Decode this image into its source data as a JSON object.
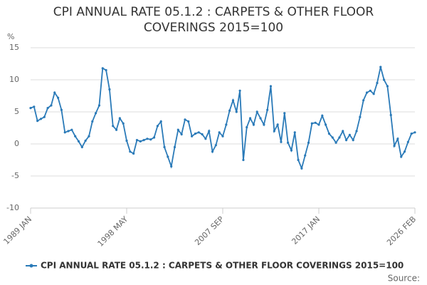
{
  "chart_data": {
    "type": "line",
    "title": "CPI ANNUAL RATE 05.1.2 : CARPETS & OTHER FLOOR COVERINGS 2015=100",
    "y_label": "%",
    "source": "Source:",
    "categories": [
      "1989 JAN",
      null,
      null,
      null,
      null,
      null,
      null,
      null,
      null,
      null,
      null,
      null,
      null,
      null,
      null,
      null,
      null,
      null,
      null,
      null,
      null,
      null,
      null,
      null,
      null,
      null,
      null,
      null,
      "1998 MAY",
      null,
      null,
      null,
      null,
      null,
      null,
      null,
      null,
      null,
      null,
      null,
      null,
      null,
      null,
      null,
      null,
      null,
      null,
      null,
      null,
      null,
      null,
      null,
      null,
      null,
      null,
      null,
      "2007 SEP",
      null,
      null,
      null,
      null,
      null,
      null,
      null,
      null,
      null,
      null,
      null,
      null,
      null,
      null,
      null,
      null,
      null,
      null,
      null,
      null,
      null,
      null,
      null,
      null,
      null,
      null,
      null,
      "2017 JAN",
      null,
      null,
      null,
      null,
      null,
      null,
      null,
      null,
      null,
      null,
      null,
      null,
      null,
      null,
      null,
      null,
      null,
      null,
      null,
      null,
      null,
      null,
      null,
      null,
      null,
      null,
      null,
      "2026 FEB"
    ],
    "series": [
      {
        "name": "CPI ANNUAL RATE 05.1.2 : CARPETS & OTHER FLOOR COVERINGS 2015=100",
        "color": "#2a7ab8",
        "values": [
          5.6,
          5.8,
          3.6,
          3.9,
          4.2,
          5.6,
          6,
          8,
          7.2,
          5.3,
          1.8,
          2,
          2.2,
          1.2,
          0.4,
          -0.5,
          0.5,
          1.2,
          3.5,
          4.8,
          6,
          11.8,
          11.5,
          8.5,
          2.8,
          2.2,
          4,
          3.2,
          0.5,
          -1.2,
          -1.5,
          0.6,
          0.4,
          0.6,
          0.8,
          0.7,
          1,
          2.8,
          3.5,
          -0.5,
          -2,
          -3.5,
          -0.5,
          2.2,
          1.5,
          3.8,
          3.5,
          1.2,
          1.6,
          1.8,
          1.5,
          0.8,
          2,
          -1.2,
          -0.2,
          1.8,
          1.2,
          3,
          5.2,
          6.8,
          5,
          8.3,
          -2.5,
          2.6,
          4,
          3,
          5,
          4,
          3,
          5.3,
          9,
          2,
          3,
          0.3,
          4.8,
          0.2,
          -1,
          1.8,
          -2.5,
          -3.8,
          -1.8,
          0.2,
          3.2,
          3.3,
          3,
          4.4,
          3,
          1.6,
          1,
          0.2,
          1,
          2,
          0.6,
          1.4,
          0.6,
          2,
          4.2,
          6.8,
          8,
          8.3,
          7.8,
          9.5,
          12,
          10,
          9,
          4.5,
          -0.3,
          0.8,
          -2,
          -1.2,
          0.3,
          1.6,
          1.8
        ]
      }
    ],
    "ylim": [
      -10,
      15
    ],
    "yticks": [
      -10,
      -5,
      0,
      5,
      10,
      15
    ],
    "grid": true
  }
}
